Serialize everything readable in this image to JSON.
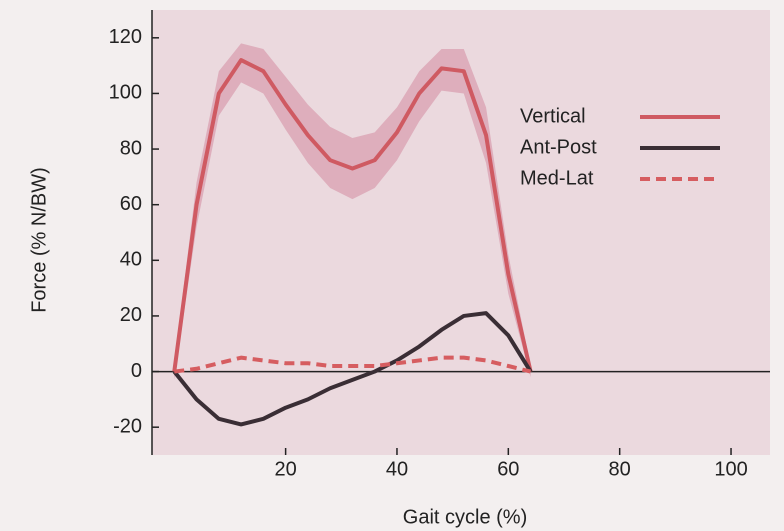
{
  "chart_data": {
    "type": "line",
    "x_label": "Gait cycle (%)",
    "y_label": "Force (% N/BW)",
    "x": [
      0,
      4,
      8,
      12,
      16,
      20,
      24,
      28,
      32,
      36,
      40,
      44,
      48,
      52,
      56,
      60,
      64
    ],
    "series": [
      {
        "name": "Vertical",
        "color": "#cf5a62",
        "dash": false,
        "values": [
          0,
          60,
          100,
          112,
          108,
          96,
          85,
          76,
          73,
          76,
          86,
          100,
          109,
          108,
          85,
          35,
          0
        ],
        "upper": [
          3,
          68,
          108,
          118,
          116,
          106,
          96,
          88,
          84,
          86,
          95,
          108,
          116,
          116,
          95,
          42,
          2
        ],
        "lower": [
          -3,
          52,
          92,
          104,
          100,
          87,
          75,
          66,
          62,
          66,
          76,
          90,
          101,
          100,
          75,
          28,
          -2
        ],
        "band_color": "#dba3b3"
      },
      {
        "name": "Ant-Post",
        "color": "#3a2e35",
        "dash": false,
        "values": [
          0,
          -10,
          -17,
          -19,
          -17,
          -13,
          -10,
          -6,
          -3,
          0,
          4,
          9,
          15,
          20,
          21,
          13,
          0
        ]
      },
      {
        "name": "Med-Lat",
        "color": "#d65d60",
        "dash": true,
        "values": [
          0,
          1,
          3,
          5,
          4,
          3,
          3,
          2,
          2,
          2,
          3,
          4,
          5,
          5,
          4,
          2,
          0
        ]
      }
    ],
    "xlim": [
      -4,
      107
    ],
    "ylim": [
      -30,
      130
    ],
    "xticks": [
      20,
      40,
      60,
      80,
      100
    ],
    "yticks": [
      -20,
      0,
      20,
      40,
      60,
      80,
      100,
      120
    ],
    "legend": "upper right"
  }
}
